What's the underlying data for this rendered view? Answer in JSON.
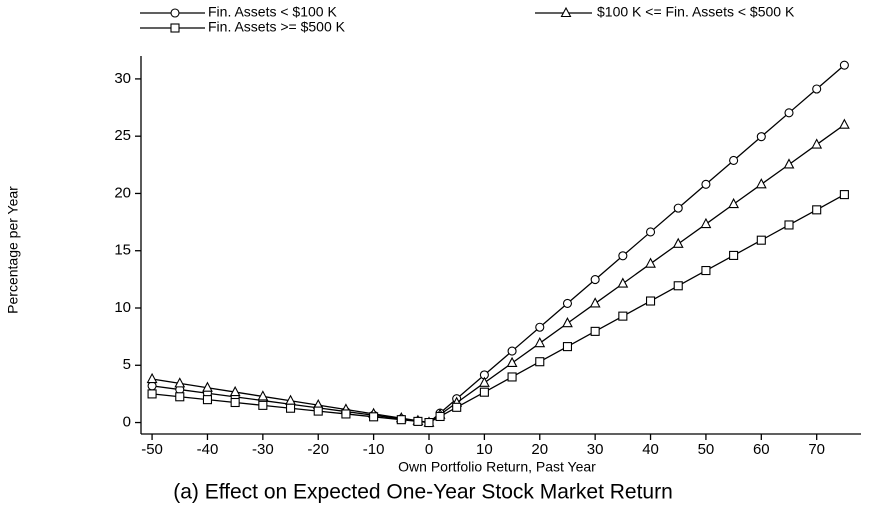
{
  "chart_data": {
    "type": "line",
    "title": "(a) Effect on Expected One-Year Stock Market Return",
    "x_label": "Own Portfolio Return, Past Year",
    "y_label": "Percentage per Year",
    "x": [
      -50,
      -45,
      -40,
      -35,
      -30,
      -25,
      -20,
      -15,
      -10,
      -5,
      -2,
      0,
      2,
      5,
      10,
      15,
      20,
      25,
      30,
      35,
      40,
      45,
      50,
      55,
      60,
      65,
      70,
      75
    ],
    "series": [
      {
        "name": "Fin. Assets < $100 K",
        "color": "#000000",
        "marker": "circle",
        "values": [
          3.2,
          2.88,
          2.56,
          2.24,
          1.92,
          1.6,
          1.28,
          0.96,
          0.64,
          0.32,
          0.13,
          0,
          0.83,
          2.08,
          4.16,
          6.24,
          8.32,
          10.4,
          12.48,
          14.56,
          16.64,
          18.72,
          20.8,
          22.88,
          24.96,
          27.04,
          29.12,
          31.2
        ]
      },
      {
        "name": "$100 K <= Fin. Assets < $500 K",
        "color": "#000000",
        "marker": "triangle",
        "values": [
          3.8,
          3.42,
          3.04,
          2.66,
          2.28,
          1.9,
          1.52,
          1.14,
          0.76,
          0.38,
          0.15,
          0,
          0.69,
          1.73,
          3.47,
          5.2,
          6.93,
          8.67,
          10.4,
          12.13,
          13.87,
          15.6,
          17.33,
          19.07,
          20.8,
          22.53,
          24.27,
          26.0
        ]
      },
      {
        "name": "Fin. Assets >= $500 K",
        "color": "#000000",
        "marker": "square",
        "values": [
          2.5,
          2.25,
          2.0,
          1.75,
          1.5,
          1.25,
          1.0,
          0.75,
          0.5,
          0.25,
          0.1,
          0,
          0.53,
          1.33,
          2.65,
          3.98,
          5.31,
          6.63,
          7.96,
          9.29,
          10.61,
          11.94,
          13.27,
          14.59,
          15.92,
          17.25,
          18.57,
          19.9
        ]
      }
    ],
    "xlim": [
      -52,
      78
    ],
    "ylim": [
      -1,
      32
    ],
    "xticks": [
      -50,
      -40,
      -30,
      -20,
      -10,
      0,
      10,
      20,
      30,
      40,
      50,
      60,
      70
    ],
    "yticks": [
      0,
      5,
      10,
      15,
      20,
      25,
      30
    ],
    "grid": false
  }
}
